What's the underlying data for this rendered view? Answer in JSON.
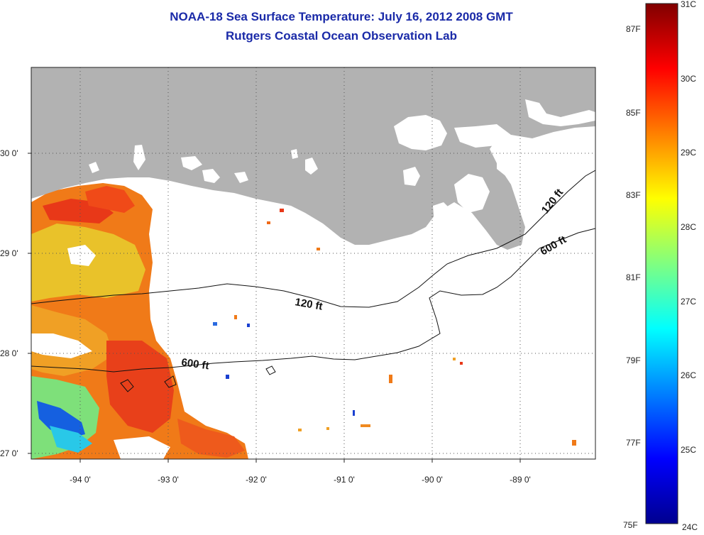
{
  "header": {
    "title_line1": "NOAA-18 Sea Surface Temperature:  July 16, 2012 2008 GMT",
    "title_line2": "Rutgers Coastal Ocean Observation Lab"
  },
  "map": {
    "land_color": "#b2b2b2",
    "longitude_labels": [
      "-94 0'",
      "-93 0'",
      "-92 0'",
      "-91 0'",
      "-90 0'",
      "-89 0'"
    ],
    "latitude_labels": [
      "30 0'",
      "29 0'",
      "28 0'",
      "27 0'"
    ],
    "contours": [
      {
        "label": "120 ft"
      },
      {
        "label": "600 ft"
      }
    ],
    "isobath_labels": [
      "120 ft",
      "120 ft",
      "600 ft",
      "600 ft"
    ]
  },
  "colorbar": {
    "fahrenheit_labels": [
      "87F",
      "85F",
      "83F",
      "81F",
      "79F",
      "77F",
      "75F"
    ],
    "celsius_labels": [
      "31C",
      "30C",
      "29C",
      "28C",
      "27C",
      "26C",
      "25C",
      "24C"
    ],
    "colormap": "jet",
    "range_celsius": [
      24,
      31
    ]
  }
}
